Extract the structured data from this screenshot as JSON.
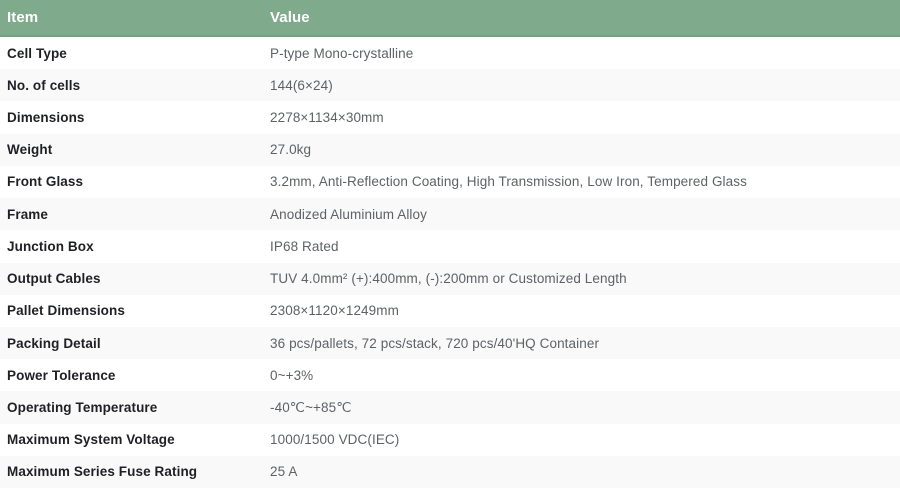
{
  "colors": {
    "header_bg": "#7faa8c",
    "header_border": "#73a182",
    "header_text": "#ffffff",
    "stripe_bg": "#f9f9f9",
    "item_text": "#1f2024",
    "value_text": "#5e6266"
  },
  "table": {
    "columns": [
      {
        "label": "Item"
      },
      {
        "label": "Value"
      }
    ],
    "rows": [
      {
        "item": "Cell Type",
        "value": "P-type Mono-crystalline"
      },
      {
        "item": "No. of cells",
        "value": "144(6×24)"
      },
      {
        "item": "Dimensions",
        "value": "2278×1134×30mm"
      },
      {
        "item": "Weight",
        "value": "27.0kg"
      },
      {
        "item": "Front Glass",
        "value": "3.2mm, Anti-Reflection Coating, High Transmission, Low Iron, Tempered Glass"
      },
      {
        "item": "Frame",
        "value": "Anodized Aluminium Alloy"
      },
      {
        "item": "Junction Box",
        "value": "IP68 Rated"
      },
      {
        "item": "Output Cables",
        "value": "TUV 4.0mm² (+):400mm, (-):200mm or Customized Length"
      },
      {
        "item": "Pallet Dimensions",
        "value": "2308×1120×1249mm"
      },
      {
        "item": "Packing Detail",
        "value": "36 pcs/pallets, 72 pcs/stack, 720 pcs/40'HQ Container"
      },
      {
        "item": "Power Tolerance",
        "value": "0~+3%"
      },
      {
        "item": "Operating Temperature",
        "value": "-40℃~+85℃"
      },
      {
        "item": "Maximum System Voltage",
        "value": "1000/1500 VDC(IEC)"
      },
      {
        "item": "Maximum Series Fuse Rating",
        "value": "25 A"
      }
    ]
  }
}
